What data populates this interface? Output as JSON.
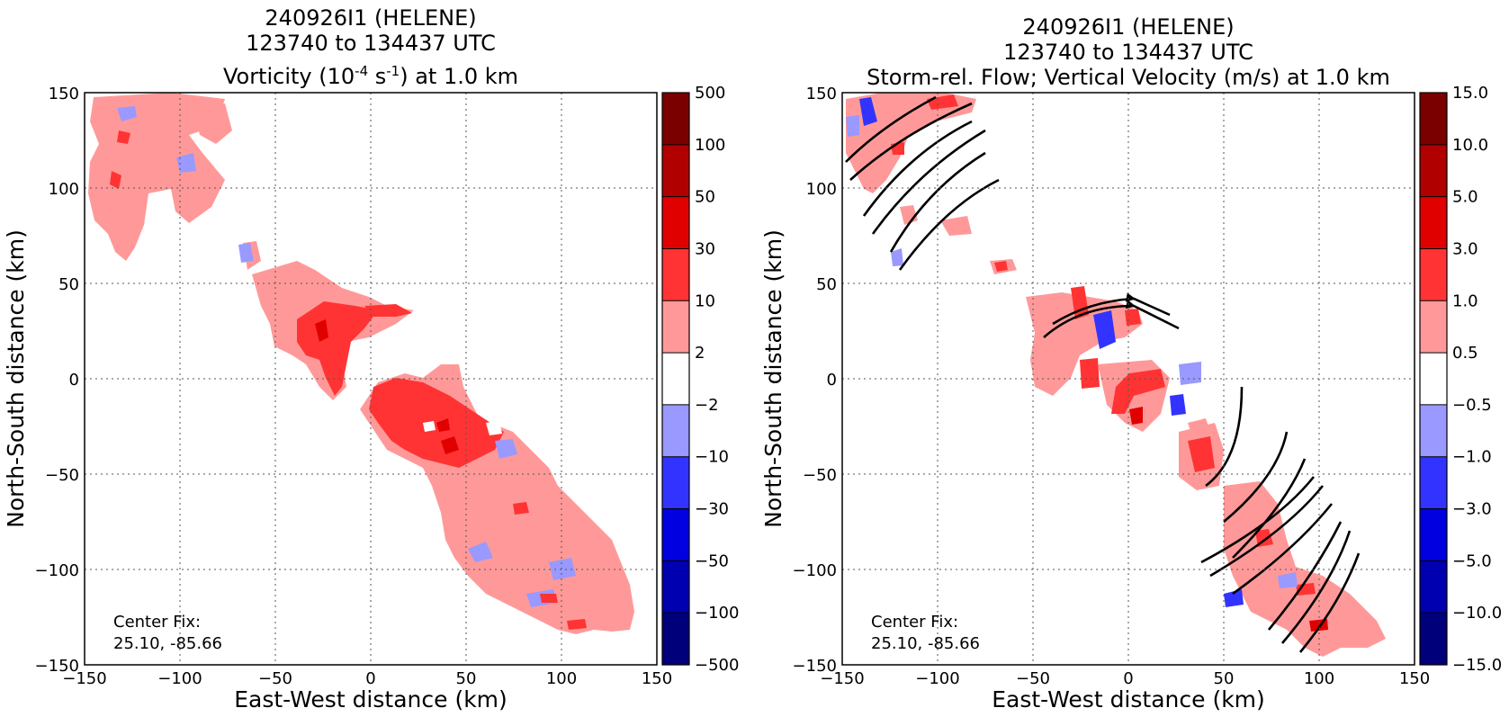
{
  "chart_data": [
    {
      "type": "heatmap",
      "title_line1": "240926I1 (HELENE)",
      "title_line2": "123740 to 134437 UTC",
      "title_line3_pre": "Vorticity (10",
      "title_line3_sup1": "-4",
      "title_line3_mid": " s",
      "title_line3_sup2": "-1",
      "title_line3_post": ") at 1.0 km",
      "xlabel": "East-West distance (km)",
      "ylabel": "North-South distance (km)",
      "xlim": [
        -150,
        150
      ],
      "ylim": [
        -150,
        150
      ],
      "xticks": [
        "−150",
        "−100",
        "−50",
        "0",
        "50",
        "100",
        "150"
      ],
      "yticks": [
        "150",
        "100",
        "50",
        "0",
        "−50",
        "−100",
        "−150"
      ],
      "grid": true,
      "colorbar_levels": [
        "500",
        "100",
        "50",
        "30",
        "10",
        "2",
        "−2",
        "−10",
        "−30",
        "−50",
        "−100",
        "−500"
      ],
      "colorbar_colors": [
        "#7a0000",
        "#b00000",
        "#e00000",
        "#ff3333",
        "#ff9999",
        "#ffffff",
        "#9999ff",
        "#3333ff",
        "#0000e0",
        "#0000b0",
        "#00007a"
      ],
      "annotation_line1": "Center Fix:",
      "annotation_line2": "25.10, -85.66"
    },
    {
      "type": "heatmap",
      "title_line1": "240926I1 (HELENE)",
      "title_line2": "123740 to 134437 UTC",
      "title_line3": "Storm-rel. Flow; Vertical Velocity (m/s) at 1.0 km",
      "xlabel": "East-West distance (km)",
      "ylabel": "North-South distance (km)",
      "xlim": [
        -150,
        150
      ],
      "ylim": [
        -150,
        150
      ],
      "xticks": [
        "−150",
        "−100",
        "−50",
        "0",
        "50",
        "100",
        "150"
      ],
      "yticks": [
        "150",
        "100",
        "50",
        "0",
        "−50",
        "−100",
        "−150"
      ],
      "grid": true,
      "colorbar_levels": [
        "15.0",
        "10.0",
        "5.0",
        "3.0",
        "1.0",
        "0.5",
        "−0.5",
        "−1.0",
        "−3.0",
        "−5.0",
        "−10.0",
        "−15.0"
      ],
      "colorbar_colors": [
        "#7a0000",
        "#b00000",
        "#e00000",
        "#ff3333",
        "#ff9999",
        "#ffffff",
        "#9999ff",
        "#3333ff",
        "#0000e0",
        "#0000b0",
        "#00007a"
      ],
      "annotation_line1": "Center Fix:",
      "annotation_line2": "25.10, -85.66"
    }
  ]
}
